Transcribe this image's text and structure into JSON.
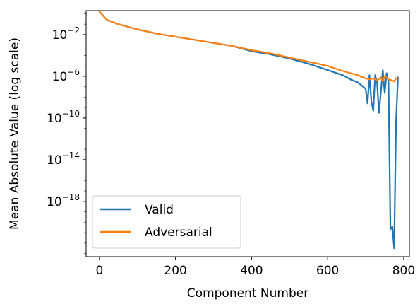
{
  "chart_data": {
    "type": "line",
    "title": "",
    "xlabel": "Component Number",
    "ylabel": "Mean Absolute Value (log scale)",
    "xlim": [
      -35,
      815
    ],
    "ylim_log10": [
      -23.3,
      0.3
    ],
    "y_scale": "log",
    "grid": false,
    "legend_position": "lower-left",
    "x_ticks": [
      0,
      200,
      400,
      600,
      800
    ],
    "x_tick_labels": [
      "0",
      "200",
      "400",
      "600",
      "800"
    ],
    "y_ticks": [
      -2,
      -6,
      -10,
      -14,
      -18
    ],
    "y_tick_labels": [
      {
        "base": "10",
        "exp": "−2"
      },
      {
        "base": "10",
        "exp": "−6"
      },
      {
        "base": "10",
        "exp": "−10"
      },
      {
        "base": "10",
        "exp": "−14"
      },
      {
        "base": "10",
        "exp": "−18"
      }
    ],
    "series": [
      {
        "name": "Valid",
        "color": "#1f77b4",
        "x": [
          0,
          5,
          20,
          50,
          100,
          150,
          200,
          250,
          300,
          350,
          400,
          450,
          500,
          550,
          600,
          640,
          660,
          680,
          700,
          705,
          710,
          715,
          720,
          725,
          730,
          735,
          740,
          745,
          750,
          755,
          760,
          765,
          770,
          775,
          780,
          785
        ],
        "log10y": [
          0.2,
          0.0,
          -0.6,
          -1.0,
          -1.5,
          -1.9,
          -2.2,
          -2.5,
          -2.8,
          -3.1,
          -3.6,
          -3.9,
          -4.3,
          -4.8,
          -5.4,
          -5.9,
          -6.3,
          -6.6,
          -7.2,
          -8.6,
          -5.9,
          -8.4,
          -9.3,
          -5.9,
          -6.6,
          -9.5,
          -7.5,
          -5.4,
          -7.6,
          -5.7,
          -6.5,
          -20.7,
          -20.4,
          -22.5,
          -10.3,
          -6.1
        ]
      },
      {
        "name": "Adversarial",
        "color": "#ff7f0e",
        "x": [
          0,
          5,
          20,
          50,
          100,
          150,
          200,
          250,
          300,
          350,
          400,
          450,
          500,
          550,
          600,
          640,
          660,
          680,
          700,
          710,
          720,
          730,
          740,
          745,
          750,
          760,
          770,
          775,
          780,
          785
        ],
        "log10y": [
          0.2,
          0.0,
          -0.6,
          -1.0,
          -1.5,
          -1.9,
          -2.2,
          -2.5,
          -2.8,
          -3.1,
          -3.5,
          -3.8,
          -4.2,
          -4.6,
          -5.0,
          -5.5,
          -5.7,
          -5.9,
          -6.2,
          -6.3,
          -6.2,
          -6.4,
          -6.1,
          -6.5,
          -6.0,
          -6.3,
          -6.4,
          -6.5,
          -6.2,
          -6.2
        ]
      }
    ]
  }
}
